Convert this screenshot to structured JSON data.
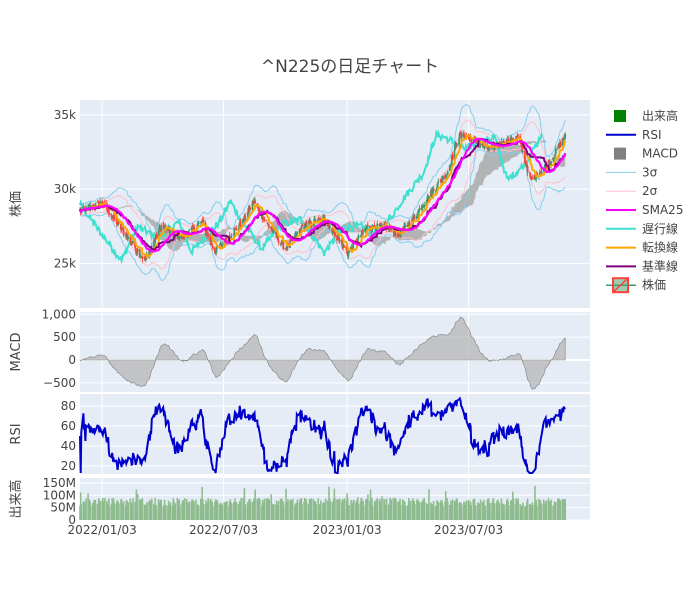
{
  "chart_data": {
    "type": "line",
    "title": "^N225の日足チャート",
    "x_tick_labels": [
      "2022/01/03",
      "2022/07/03",
      "2023/01/03",
      "2023/07/03"
    ],
    "x_range": [
      "2021/12/01",
      "2023/12/31"
    ],
    "data_end": "2023/11/24",
    "panels": [
      {
        "id": "price",
        "ylabel": "株価",
        "ylim": [
          22000,
          36000
        ],
        "ytick_labels": [
          "25k",
          "30k",
          "35k"
        ],
        "yticks": [
          25000,
          30000,
          35000
        ],
        "series_anchors": {
          "dates": [
            "2021/12/01",
            "2022/01/03",
            "2022/02/01",
            "2022/03/08",
            "2022/04/01",
            "2022/05/01",
            "2022/06/01",
            "2022/06/20",
            "2022/08/01",
            "2022/08/17",
            "2022/09/01",
            "2022/10/03",
            "2022/11/01",
            "2022/12/01",
            "2023/01/04",
            "2023/02/01",
            "2023/03/01",
            "2023/03/20",
            "2023/04/10",
            "2023/05/01",
            "2023/06/01",
            "2023/06/19",
            "2023/07/03",
            "2023/08/01",
            "2023/09/15",
            "2023/10/04",
            "2023/11/01",
            "2023/11/24"
          ],
          "close": [
            28500,
            29100,
            27300,
            25200,
            27500,
            26700,
            27800,
            25800,
            27800,
            29200,
            28000,
            26000,
            27600,
            28000,
            25700,
            27400,
            27500,
            26900,
            27900,
            29300,
            31100,
            33600,
            33500,
            32700,
            33500,
            30600,
            31800,
            33600
          ]
        }
      },
      {
        "id": "macd",
        "ylabel": "MACD",
        "ylim": [
          -700,
          1050
        ],
        "ytick_labels": [
          "−500",
          "0",
          "500",
          "1,000"
        ],
        "yticks": [
          -500,
          0,
          500,
          1000
        ]
      },
      {
        "id": "rsi",
        "ylabel": "RSI",
        "ylim": [
          12,
          92
        ],
        "ytick_labels": [
          "20",
          "40",
          "60",
          "80"
        ],
        "yticks": [
          20,
          40,
          60,
          80
        ]
      },
      {
        "id": "volume",
        "ylabel": "出来高",
        "ylim": [
          0,
          170000000
        ],
        "ytick_labels": [
          "0",
          "50M",
          "100M",
          "150M"
        ],
        "yticks": [
          0,
          50000000,
          100000000,
          150000000
        ]
      }
    ],
    "legend_placement": "right",
    "legend": [
      {
        "name": "出来高",
        "marker": "square",
        "color": "#008000"
      },
      {
        "name": "RSI",
        "marker": "line",
        "color": "#0000cd"
      },
      {
        "name": "MACD",
        "marker": "square",
        "color": "#808080"
      },
      {
        "name": "3σ",
        "marker": "thin-line",
        "color": "#87ceeb"
      },
      {
        "name": "2σ",
        "marker": "thin-line",
        "color": "#ffc0cb"
      },
      {
        "name": "SMA25",
        "marker": "line",
        "color": "#ff00ff"
      },
      {
        "name": "遅行線",
        "marker": "line",
        "color": "#40e0d0"
      },
      {
        "name": "転換線",
        "marker": "line",
        "color": "#ffa500"
      },
      {
        "name": "基準線",
        "marker": "line",
        "color": "#800080"
      },
      {
        "name": "株価",
        "marker": "candle",
        "color": "#ff4136",
        "color2": "#3d9970"
      }
    ],
    "colors": {
      "plot_bg": "#e5ecf6",
      "grid": "#ffffff",
      "cloud": "#a9a9a9",
      "volume": "#8fbc8f",
      "up": "#3d9970",
      "down": "#ff4136"
    }
  }
}
